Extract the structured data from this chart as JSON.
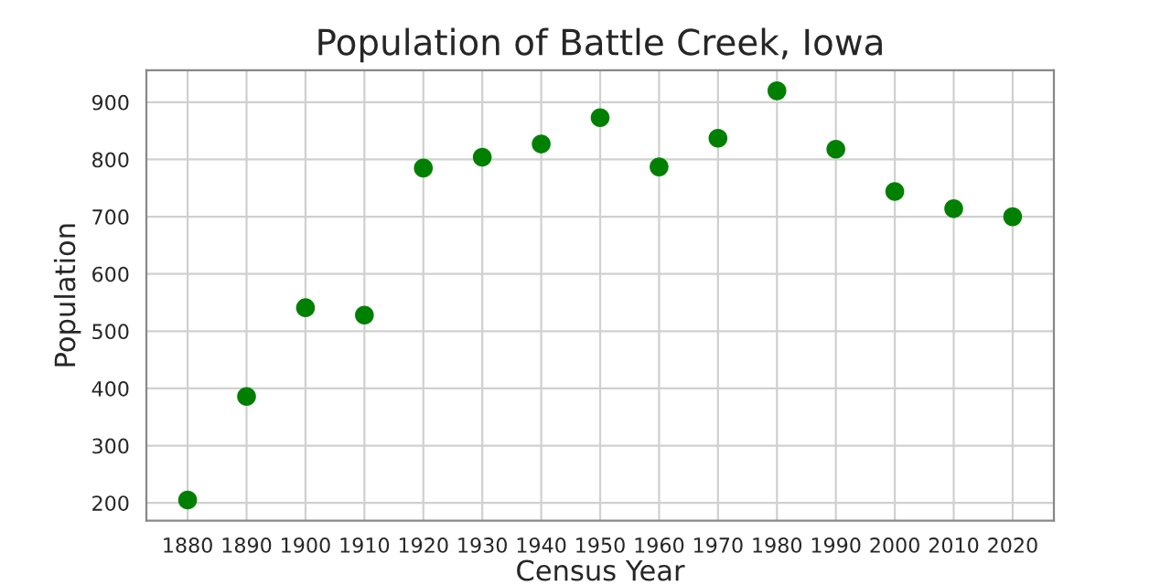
{
  "chart_data": {
    "type": "scatter",
    "title": "Population of Battle Creek, Iowa",
    "xlabel": "Census Year",
    "ylabel": "Population",
    "x": [
      1880,
      1890,
      1900,
      1910,
      1920,
      1930,
      1940,
      1950,
      1960,
      1970,
      1980,
      1990,
      2000,
      2010,
      2020
    ],
    "series": [
      {
        "color": "#008000",
        "values": [
          205,
          386,
          541,
          528,
          785,
          804,
          827,
          873,
          787,
          837,
          920,
          818,
          744,
          714,
          700
        ]
      }
    ],
    "xlim": [
      1873,
      2027
    ],
    "ylim": [
      169,
      956
    ],
    "xticks": [
      1880,
      1890,
      1900,
      1910,
      1920,
      1930,
      1940,
      1950,
      1960,
      1970,
      1980,
      1990,
      2000,
      2010,
      2020
    ],
    "yticks": [
      200,
      300,
      400,
      500,
      600,
      700,
      800,
      900
    ],
    "grid": true,
    "marker": "circle",
    "legend": false
  }
}
